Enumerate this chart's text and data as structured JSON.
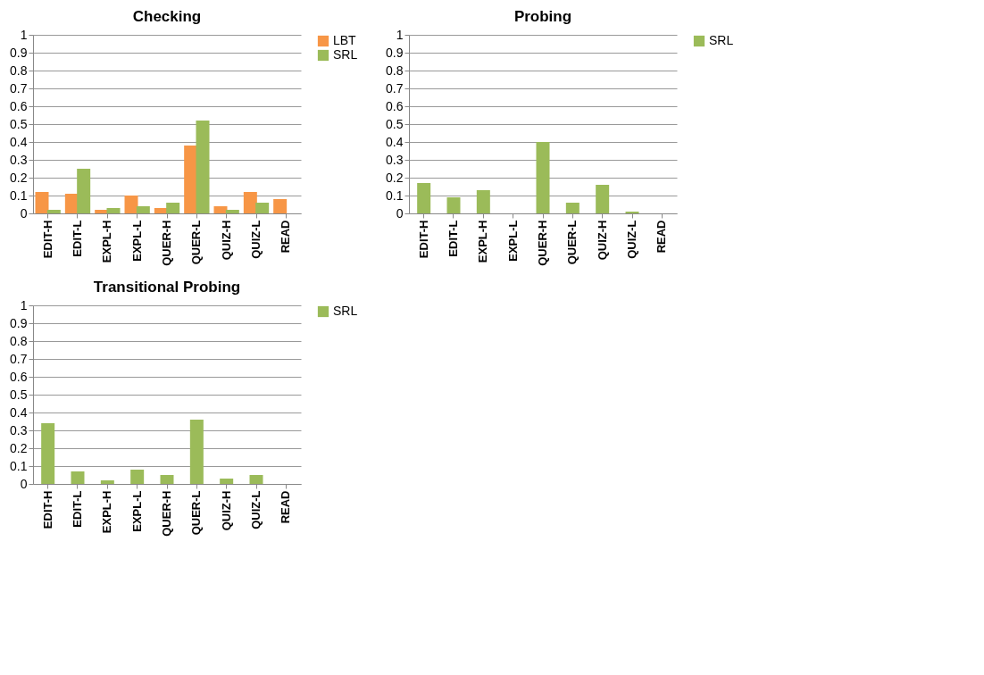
{
  "chart_data": [
    {
      "type": "bar",
      "title": "Checking",
      "categories": [
        "EDIT-H",
        "EDIT-L",
        "EXPL-H",
        "EXPL-L",
        "QUER-H",
        "QUER-L",
        "QUIZ-H",
        "QUIZ-L",
        "READ"
      ],
      "series": [
        {
          "name": "LBT",
          "color": "#f79646",
          "values": [
            0.12,
            0.11,
            0.02,
            0.1,
            0.03,
            0.38,
            0.04,
            0.12,
            0.08
          ]
        },
        {
          "name": "SRL",
          "color": "#9bbb59",
          "values": [
            0.02,
            0.25,
            0.03,
            0.04,
            0.06,
            0.52,
            0.02,
            0.06,
            0
          ]
        }
      ],
      "ylim": [
        0,
        1
      ],
      "yticks": [
        0,
        0.1,
        0.2,
        0.3,
        0.4,
        0.5,
        0.6,
        0.7,
        0.8,
        0.9,
        1
      ],
      "grid": "y",
      "legend": "right"
    },
    {
      "type": "bar",
      "title": "Probing",
      "categories": [
        "EDIT-H",
        "EDIT-L",
        "EXPL-H",
        "EXPL-L",
        "QUER-H",
        "QUER-L",
        "QUIZ-H",
        "QUIZ-L",
        "READ"
      ],
      "series": [
        {
          "name": "SRL",
          "color": "#9bbb59",
          "values": [
            0.17,
            0.09,
            0.13,
            0,
            0.4,
            0.06,
            0.16,
            0.01,
            0
          ]
        }
      ],
      "ylim": [
        0,
        1
      ],
      "yticks": [
        0,
        0.1,
        0.2,
        0.3,
        0.4,
        0.5,
        0.6,
        0.7,
        0.8,
        0.9,
        1
      ],
      "grid": "y",
      "legend": "right"
    },
    {
      "type": "bar",
      "title": "Transitional Probing",
      "categories": [
        "EDIT-H",
        "EDIT-L",
        "EXPL-H",
        "EXPL-L",
        "QUER-H",
        "QUER-L",
        "QUIZ-H",
        "QUIZ-L",
        "READ"
      ],
      "series": [
        {
          "name": "SRL",
          "color": "#9bbb59",
          "values": [
            0.34,
            0.07,
            0.02,
            0.08,
            0.05,
            0.36,
            0.03,
            0.05,
            0
          ]
        }
      ],
      "ylim": [
        0,
        1
      ],
      "yticks": [
        0,
        0.1,
        0.2,
        0.3,
        0.4,
        0.5,
        0.6,
        0.7,
        0.8,
        0.9,
        1
      ],
      "grid": "y",
      "legend": "right"
    }
  ]
}
